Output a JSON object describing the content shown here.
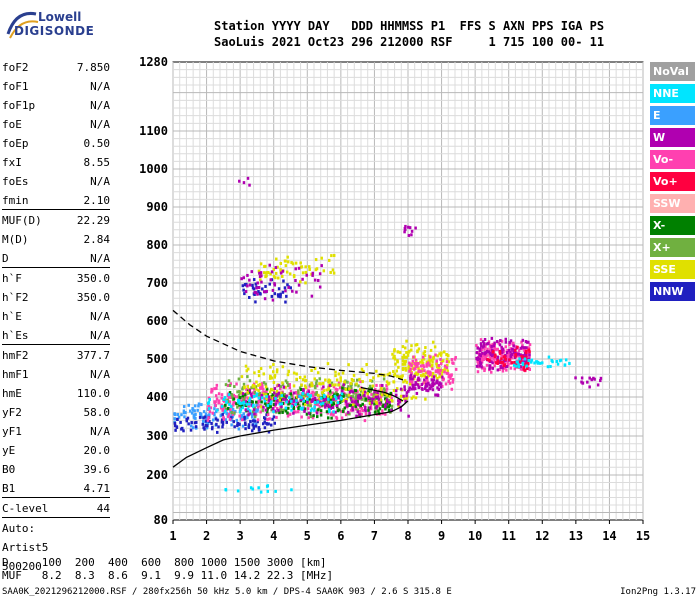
{
  "logo": {
    "top": "Lowell",
    "bottom": "DIGISONDE"
  },
  "header": {
    "line1": "Station YYYY DAY   DDD HHMMSS P1  FFS S AXN PPS IGA PS",
    "line2": "SaoLuis 2021 Oct23 296 212000 RSF     1 715 100 00- 11"
  },
  "params": [
    {
      "label": "foF2",
      "value": "7.850"
    },
    {
      "label": "foF1",
      "value": "N/A"
    },
    {
      "label": "foF1p",
      "value": "N/A"
    },
    {
      "label": "foE",
      "value": "N/A"
    },
    {
      "label": "foEp",
      "value": "0.50"
    },
    {
      "label": "fxI",
      "value": "8.55"
    },
    {
      "label": "foEs",
      "value": "N/A"
    },
    {
      "label": "fmin",
      "value": "2.10"
    },
    {
      "label": "MUF(D)",
      "value": "22.29"
    },
    {
      "label": "M(D)",
      "value": "2.84"
    },
    {
      "label": "D",
      "value": "N/A"
    },
    {
      "label": "h`F",
      "value": "350.0"
    },
    {
      "label": "h`F2",
      "value": "350.0"
    },
    {
      "label": "h`E",
      "value": "N/A"
    },
    {
      "label": "h`Es",
      "value": "N/A"
    },
    {
      "label": "hmF2",
      "value": "377.7"
    },
    {
      "label": "hmF1",
      "value": "N/A"
    },
    {
      "label": "hmE",
      "value": "110.0"
    },
    {
      "label": "yF2",
      "value": "58.0"
    },
    {
      "label": "yF1",
      "value": "N/A"
    },
    {
      "label": "yE",
      "value": "20.0"
    },
    {
      "label": "B0",
      "value": "39.6"
    },
    {
      "label": "B1",
      "value": "4.71"
    },
    {
      "label": "C-level",
      "value": "44"
    },
    {
      "label": "Auto:",
      "value": ""
    },
    {
      "label": "Artist5",
      "value": ""
    },
    {
      "label": "500200",
      "value": ""
    }
  ],
  "legend": [
    {
      "label": "NoVal",
      "color": "#a0a0a0"
    },
    {
      "label": "NNE",
      "color": "#00e5ff"
    },
    {
      "label": "E",
      "color": "#3aa0ff"
    },
    {
      "label": "W",
      "color": "#b000b0"
    },
    {
      "label": "Vo-",
      "color": "#ff40b0"
    },
    {
      "label": "Vo+",
      "color": "#ff0040"
    },
    {
      "label": "SSW",
      "color": "#ffb0b0"
    },
    {
      "label": "X-",
      "color": "#008000"
    },
    {
      "label": "X+",
      "color": "#70b040"
    },
    {
      "label": "SSE",
      "color": "#e0e000"
    },
    {
      "label": "NNW",
      "color": "#2020c0"
    }
  ],
  "footer": {
    "d_line": "D     100  200  400  600  800 1000 1500 3000 [km]",
    "muf_line": "MUF   8.2  8.3  8.6  9.1  9.9 11.0 14.2 22.3 [MHz]",
    "file_line": "SAA0K_2021296212000.RSF / 280fx256h 50 kHz 5.0 km / DPS-4 SAA0K 903 / 2.6 S 315.8 E",
    "version": "Ion2Png 1.3.17"
  },
  "chart_data": {
    "type": "scatter",
    "title": "",
    "xlabel": "",
    "ylabel": "",
    "xlim": [
      1,
      15
    ],
    "ylim": [
      80,
      1280
    ],
    "x_ticks": [
      1,
      2,
      3,
      4,
      5,
      6,
      7,
      8,
      9,
      10,
      11,
      12,
      13,
      14,
      15
    ],
    "y_ticks": [
      80,
      200,
      300,
      400,
      500,
      600,
      700,
      800,
      900,
      1000,
      1100,
      1280
    ],
    "grid": true,
    "curves": [
      {
        "name": "profile",
        "style": "solid",
        "points": [
          [
            1.0,
            220
          ],
          [
            1.4,
            245
          ],
          [
            2.0,
            270
          ],
          [
            2.5,
            290
          ],
          [
            3.0,
            300
          ],
          [
            4.0,
            315
          ],
          [
            5.0,
            328
          ],
          [
            6.0,
            340
          ],
          [
            7.0,
            355
          ],
          [
            7.5,
            362
          ],
          [
            7.8,
            375
          ],
          [
            8.0,
            390
          ]
        ]
      },
      {
        "name": "extrapolated",
        "style": "dashed",
        "points": [
          [
            1.0,
            628
          ],
          [
            1.5,
            590
          ],
          [
            2.0,
            560
          ],
          [
            3.0,
            520
          ],
          [
            4.0,
            495
          ],
          [
            5.0,
            480
          ],
          [
            6.0,
            470
          ],
          [
            7.0,
            462
          ],
          [
            7.5,
            455
          ],
          [
            7.85,
            445
          ]
        ]
      },
      {
        "name": "trace",
        "style": "solid",
        "points": [
          [
            6.6,
            425
          ],
          [
            7.0,
            418
          ],
          [
            7.3,
            412
          ],
          [
            7.6,
            402
          ],
          [
            7.85,
            390
          ]
        ]
      }
    ],
    "clusters": [
      {
        "series": "E",
        "x": [
          1.0,
          3.5
        ],
        "y": [
          315,
          400
        ],
        "n": 120
      },
      {
        "series": "NNW",
        "x": [
          1.0,
          4.0
        ],
        "y": [
          310,
          360
        ],
        "n": 90
      },
      {
        "series": "Vo-",
        "x": [
          2.0,
          7.5
        ],
        "y": [
          340,
          450
        ],
        "n": 380
      },
      {
        "series": "X+",
        "x": [
          2.5,
          7.5
        ],
        "y": [
          350,
          460
        ],
        "n": 200
      },
      {
        "series": "X-",
        "x": [
          2.5,
          7.5
        ],
        "y": [
          345,
          430
        ],
        "n": 160
      },
      {
        "series": "SSE",
        "x": [
          3.0,
          8.5
        ],
        "y": [
          370,
          500
        ],
        "n": 200
      },
      {
        "series": "W",
        "x": [
          3.0,
          8.0
        ],
        "y": [
          350,
          440
        ],
        "n": 160
      },
      {
        "series": "NNE",
        "x": [
          2.0,
          6.0
        ],
        "y": [
          360,
          420
        ],
        "n": 90
      },
      {
        "series": "SSE",
        "x": [
          7.5,
          9.2
        ],
        "y": [
          430,
          560
        ],
        "n": 140
      },
      {
        "series": "Vo-",
        "x": [
          8.0,
          9.4
        ],
        "y": [
          420,
          520
        ],
        "n": 90
      },
      {
        "series": "W",
        "x": [
          8.0,
          9.0
        ],
        "y": [
          400,
          470
        ],
        "n": 60
      },
      {
        "series": "Vo-",
        "x": [
          10.0,
          11.6
        ],
        "y": [
          460,
          560
        ],
        "n": 200
      },
      {
        "series": "W",
        "x": [
          10.0,
          11.6
        ],
        "y": [
          470,
          560
        ],
        "n": 120
      },
      {
        "series": "Vo+",
        "x": [
          10.3,
          11.6
        ],
        "y": [
          470,
          540
        ],
        "n": 50
      },
      {
        "series": "NNE",
        "x": [
          11.0,
          12.8
        ],
        "y": [
          480,
          510
        ],
        "n": 35
      },
      {
        "series": "W",
        "x": [
          12.8,
          13.8
        ],
        "y": [
          430,
          470
        ],
        "n": 14
      },
      {
        "series": "NNW",
        "x": [
          3.0,
          4.5
        ],
        "y": [
          640,
          720
        ],
        "n": 40
      },
      {
        "series": "SSE",
        "x": [
          3.5,
          5.8
        ],
        "y": [
          700,
          790
        ],
        "n": 60
      },
      {
        "series": "W",
        "x": [
          3.0,
          5.5
        ],
        "y": [
          650,
          760
        ],
        "n": 50
      },
      {
        "series": "W",
        "x": [
          7.8,
          8.2
        ],
        "y": [
          820,
          880
        ],
        "n": 10
      },
      {
        "series": "W",
        "x": [
          2.9,
          3.4
        ],
        "y": [
          955,
          985
        ],
        "n": 4
      },
      {
        "series": "NNE",
        "x": [
          2.5,
          4.5
        ],
        "y": [
          155,
          180
        ],
        "n": 12
      }
    ]
  }
}
